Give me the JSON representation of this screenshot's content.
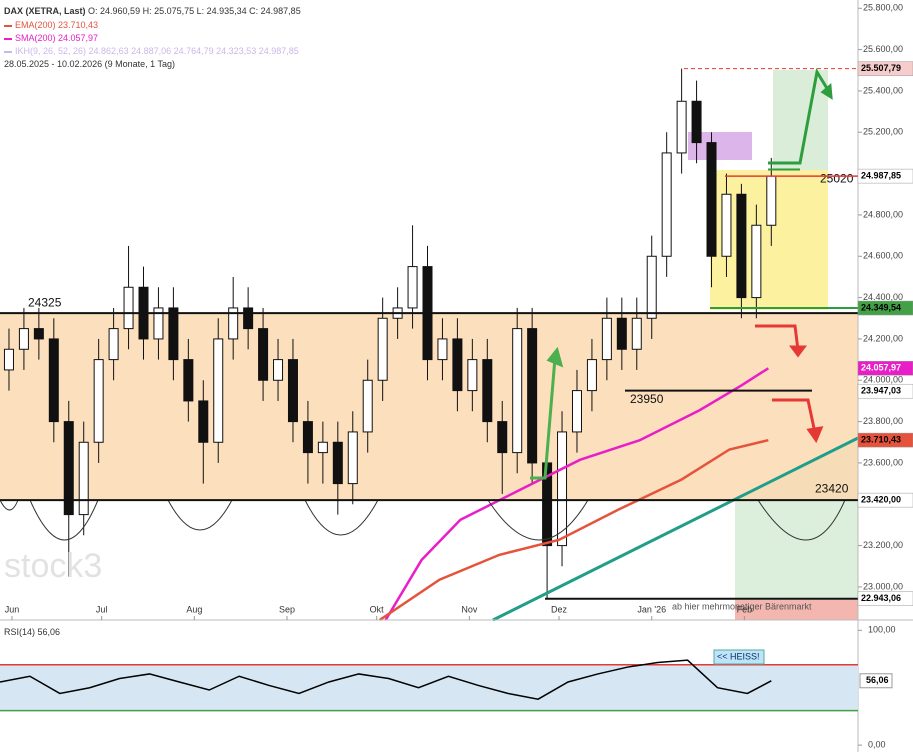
{
  "chart_data": {
    "type": "candlestick",
    "title": "DAX (XETRA, Last)",
    "ohlc_label": "O: 24.960,59  H: 25.075,75  L: 24.935,34  C: 24.987,85",
    "indicators": [
      {
        "text": "EMA(200)  23.710,43",
        "color": "#e5533c"
      },
      {
        "text": "SMA(200)  24.057,97",
        "color": "#e91ec8"
      },
      {
        "text": "IKH(9, 26, 52, 26)  24.862,63  24.887,06  24.764,79  24.323,53  24.987,85",
        "color": "#c9b8e8"
      }
    ],
    "period": "28.05.2025 - 10.02.2026  (9 Monate, 1 Tag)",
    "watermark": "stock3",
    "x": [
      3,
      8,
      13,
      18,
      23,
      28,
      33,
      38,
      43,
      48,
      53,
      58,
      63,
      68,
      73,
      78,
      83,
      88,
      93,
      98,
      103,
      108,
      113,
      118,
      123,
      128,
      133,
      138,
      143,
      148,
      153,
      158,
      163,
      168,
      173,
      178,
      183,
      188,
      193,
      198,
      203,
      208,
      213,
      218,
      223,
      228,
      233,
      238,
      243,
      248,
      253,
      258
    ],
    "open": [
      24050,
      24150,
      24250,
      24200,
      23800,
      23350,
      23700,
      24100,
      24250,
      24450,
      24200,
      24350,
      24100,
      23900,
      23700,
      24200,
      24350,
      24250,
      24000,
      24100,
      23800,
      23650,
      23700,
      23500,
      23750,
      24000,
      24300,
      24350,
      24550,
      24100,
      24200,
      23950,
      24100,
      23800,
      23650,
      24250,
      23600,
      23200,
      23750,
      23950,
      24100,
      24300,
      24150,
      24300,
      24600,
      25100,
      25350,
      25150,
      24600,
      24900,
      24400,
      24750
    ],
    "high": [
      24250,
      24350,
      24350,
      24300,
      23900,
      23800,
      24200,
      24350,
      24650,
      24550,
      24450,
      24450,
      24200,
      24000,
      24300,
      24500,
      24450,
      24350,
      24200,
      24200,
      23900,
      23800,
      23800,
      23850,
      24100,
      24400,
      24450,
      24750,
      24650,
      24300,
      24300,
      24200,
      24200,
      23900,
      24350,
      24350,
      23700,
      23850,
      24050,
      24200,
      24400,
      24400,
      24400,
      24700,
      25200,
      25508,
      25450,
      25200,
      25000,
      24950,
      24850,
      25076
    ],
    "low": [
      23950,
      24050,
      24100,
      23700,
      23050,
      23250,
      23600,
      24000,
      24150,
      24100,
      24100,
      24000,
      23800,
      23500,
      23600,
      24100,
      24150,
      23900,
      23900,
      23700,
      23500,
      23500,
      23350,
      23400,
      23650,
      23900,
      24200,
      24250,
      24000,
      24000,
      23850,
      23850,
      23700,
      23450,
      23550,
      23500,
      22943,
      23100,
      23650,
      23850,
      24000,
      24050,
      24050,
      24200,
      24500,
      25000,
      25050,
      24450,
      24500,
      24300,
      24300,
      24650
    ],
    "close": [
      24150,
      24250,
      24200,
      23800,
      23350,
      23700,
      24100,
      24250,
      24450,
      24200,
      24350,
      24100,
      23900,
      23700,
      24200,
      24350,
      24250,
      24000,
      24100,
      23800,
      23650,
      23700,
      23500,
      23750,
      24000,
      24300,
      24350,
      24550,
      24100,
      24200,
      23950,
      24100,
      23800,
      23650,
      24250,
      23600,
      23200,
      23750,
      23950,
      24100,
      24300,
      24150,
      24300,
      24600,
      25100,
      25350,
      25150,
      24600,
      24900,
      24400,
      24750,
      24988
    ],
    "series": [
      {
        "name": "SMA(200)",
        "color": "#e91ec8",
        "x": [
          129,
          141,
          154,
          174,
          194,
          214,
          234,
          248,
          257
        ],
        "values": [
          22840,
          23130,
          23325,
          23470,
          23615,
          23710,
          23855,
          23975,
          24058
        ]
      },
      {
        "name": "EMA(200)",
        "color": "#e5533c",
        "x": [
          127,
          147,
          167,
          187,
          207,
          228,
          244,
          257
        ],
        "values": [
          22840,
          23035,
          23155,
          23228,
          23375,
          23520,
          23665,
          23710
        ]
      }
    ],
    "xlim": [
      0,
      287
    ],
    "xticks": [
      {
        "value": 4,
        "label": "Jun"
      },
      {
        "value": 34,
        "label": "Jul"
      },
      {
        "value": 65,
        "label": "Aug"
      },
      {
        "value": 96,
        "label": "Sep"
      },
      {
        "value": 126,
        "label": "Okt"
      },
      {
        "value": 157,
        "label": "Nov"
      },
      {
        "value": 187,
        "label": "Dez"
      },
      {
        "value": 218,
        "label": "Jan '26"
      },
      {
        "value": 249,
        "label": "Feb"
      }
    ],
    "ylim": [
      22840,
      25840
    ],
    "yticks": [
      {
        "value": 23000,
        "label": "23.000,00"
      },
      {
        "value": 23200,
        "label": "23.200,00"
      },
      {
        "value": 23400,
        "label": "23.400,00"
      },
      {
        "value": 23600,
        "label": "23.600,00"
      },
      {
        "value": 23800,
        "label": "23.800,00"
      },
      {
        "value": 24000,
        "label": "24.000,00"
      },
      {
        "value": 24200,
        "label": "24.200,00"
      },
      {
        "value": 24400,
        "label": "24.400,00"
      },
      {
        "value": 24600,
        "label": "24.600,00"
      },
      {
        "value": 24800,
        "label": "24.800,00"
      },
      {
        "value": 25000,
        "label": "25.000,00"
      },
      {
        "value": 25200,
        "label": "25.200,00"
      },
      {
        "value": 25400,
        "label": "25.400,00"
      },
      {
        "value": 25600,
        "label": "25.600,00"
      },
      {
        "value": 25800,
        "label": "25.800,00"
      }
    ],
    "levels": [
      24325,
      23950,
      23420,
      25020
    ],
    "price_labels": [
      {
        "value": 25507.79,
        "label": "25.507,79",
        "color": "#f6cccc",
        "text_color": "#000"
      },
      {
        "value": 24987.85,
        "label": "24.987,85",
        "color": "#ffffff",
        "text_color": "#000"
      },
      {
        "value": 24349.54,
        "label": "24.349,54",
        "color": "#43a047",
        "text_color": "#000"
      },
      {
        "value": 24057.97,
        "label": "24.057,97",
        "color": "#e91ec8",
        "text_color": "#fff"
      },
      {
        "value": 23947.03,
        "label": "23.947,03",
        "color": "#ffffff",
        "text_color": "#000"
      },
      {
        "value": 23710.43,
        "label": "23.710,43",
        "color": "#e5533c",
        "text_color": "#000"
      },
      {
        "value": 23420,
        "label": "23.420,00",
        "color": "#ffffff",
        "text_color": "#000"
      },
      {
        "value": 22943.06,
        "label": "22.943,06",
        "color": "#ffffff",
        "text_color": "#000"
      }
    ],
    "annotation": "ab hier mehrmonatiger Bärenmarkt",
    "rsi": {
      "label": "RSI(14)  56,06",
      "x": [
        0,
        10,
        20,
        30,
        40,
        50,
        60,
        70,
        80,
        90,
        100,
        110,
        120,
        130,
        140,
        150,
        160,
        170,
        180,
        190,
        200,
        210,
        220,
        230,
        240,
        250,
        258
      ],
      "values": [
        55,
        60,
        45,
        50,
        58,
        62,
        55,
        48,
        60,
        52,
        45,
        55,
        62,
        58,
        50,
        60,
        52,
        45,
        40,
        55,
        62,
        68,
        72,
        74,
        50,
        45,
        56
      ],
      "color": "#000000",
      "ylim": [
        -6,
        109
      ],
      "yticks": [
        {
          "value": 0,
          "label": "0,00"
        },
        {
          "value": 100,
          "label": "100,00"
        }
      ],
      "bands": [
        70,
        30
      ],
      "last_label": {
        "value": 56.06,
        "label": "56,06"
      },
      "note": "<< HEISS!"
    }
  }
}
